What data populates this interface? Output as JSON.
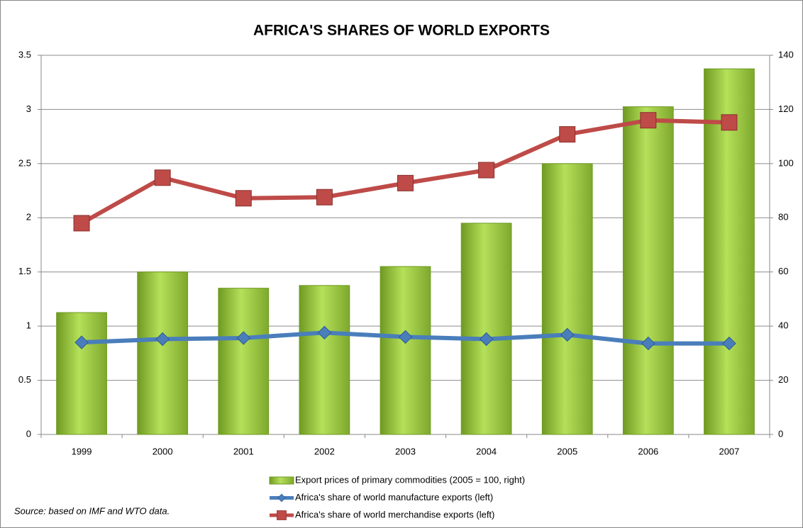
{
  "chart_data": {
    "type": "combo",
    "title": "AFRICA'S SHARES OF WORLD EXPORTS",
    "categories": [
      "1999",
      "2000",
      "2001",
      "2002",
      "2003",
      "2004",
      "2005",
      "2006",
      "2007"
    ],
    "series": [
      {
        "name": "Export prices of primary commodities  (2005 = 100, right)",
        "type": "bar",
        "axis": "y2",
        "color": "#92c83e",
        "values": [
          45,
          60,
          54,
          55,
          62,
          78,
          100,
          121,
          135
        ]
      },
      {
        "name": "Africa's share of world manufacture exports (left)",
        "type": "line",
        "marker": "diamond",
        "color": "#4a7ebb",
        "values": [
          0.85,
          0.88,
          0.89,
          0.94,
          0.9,
          0.88,
          0.92,
          0.84,
          0.84
        ]
      },
      {
        "name": "Africa's share of world merchandise exports (left)",
        "type": "line",
        "marker": "square",
        "color": "#be4b48",
        "values": [
          1.95,
          2.37,
          2.18,
          2.19,
          2.32,
          2.44,
          2.77,
          2.9,
          2.88
        ]
      }
    ],
    "ylim": [
      0,
      3.5
    ],
    "yticks": [
      0,
      0.5,
      1,
      1.5,
      2,
      2.5,
      3,
      3.5
    ],
    "y2lim": [
      0,
      140
    ],
    "y2ticks": [
      0,
      20,
      40,
      60,
      80,
      100,
      120,
      140
    ],
    "grid": true,
    "legend": "bottom",
    "source": "Source: based on IMF and WTO data."
  }
}
